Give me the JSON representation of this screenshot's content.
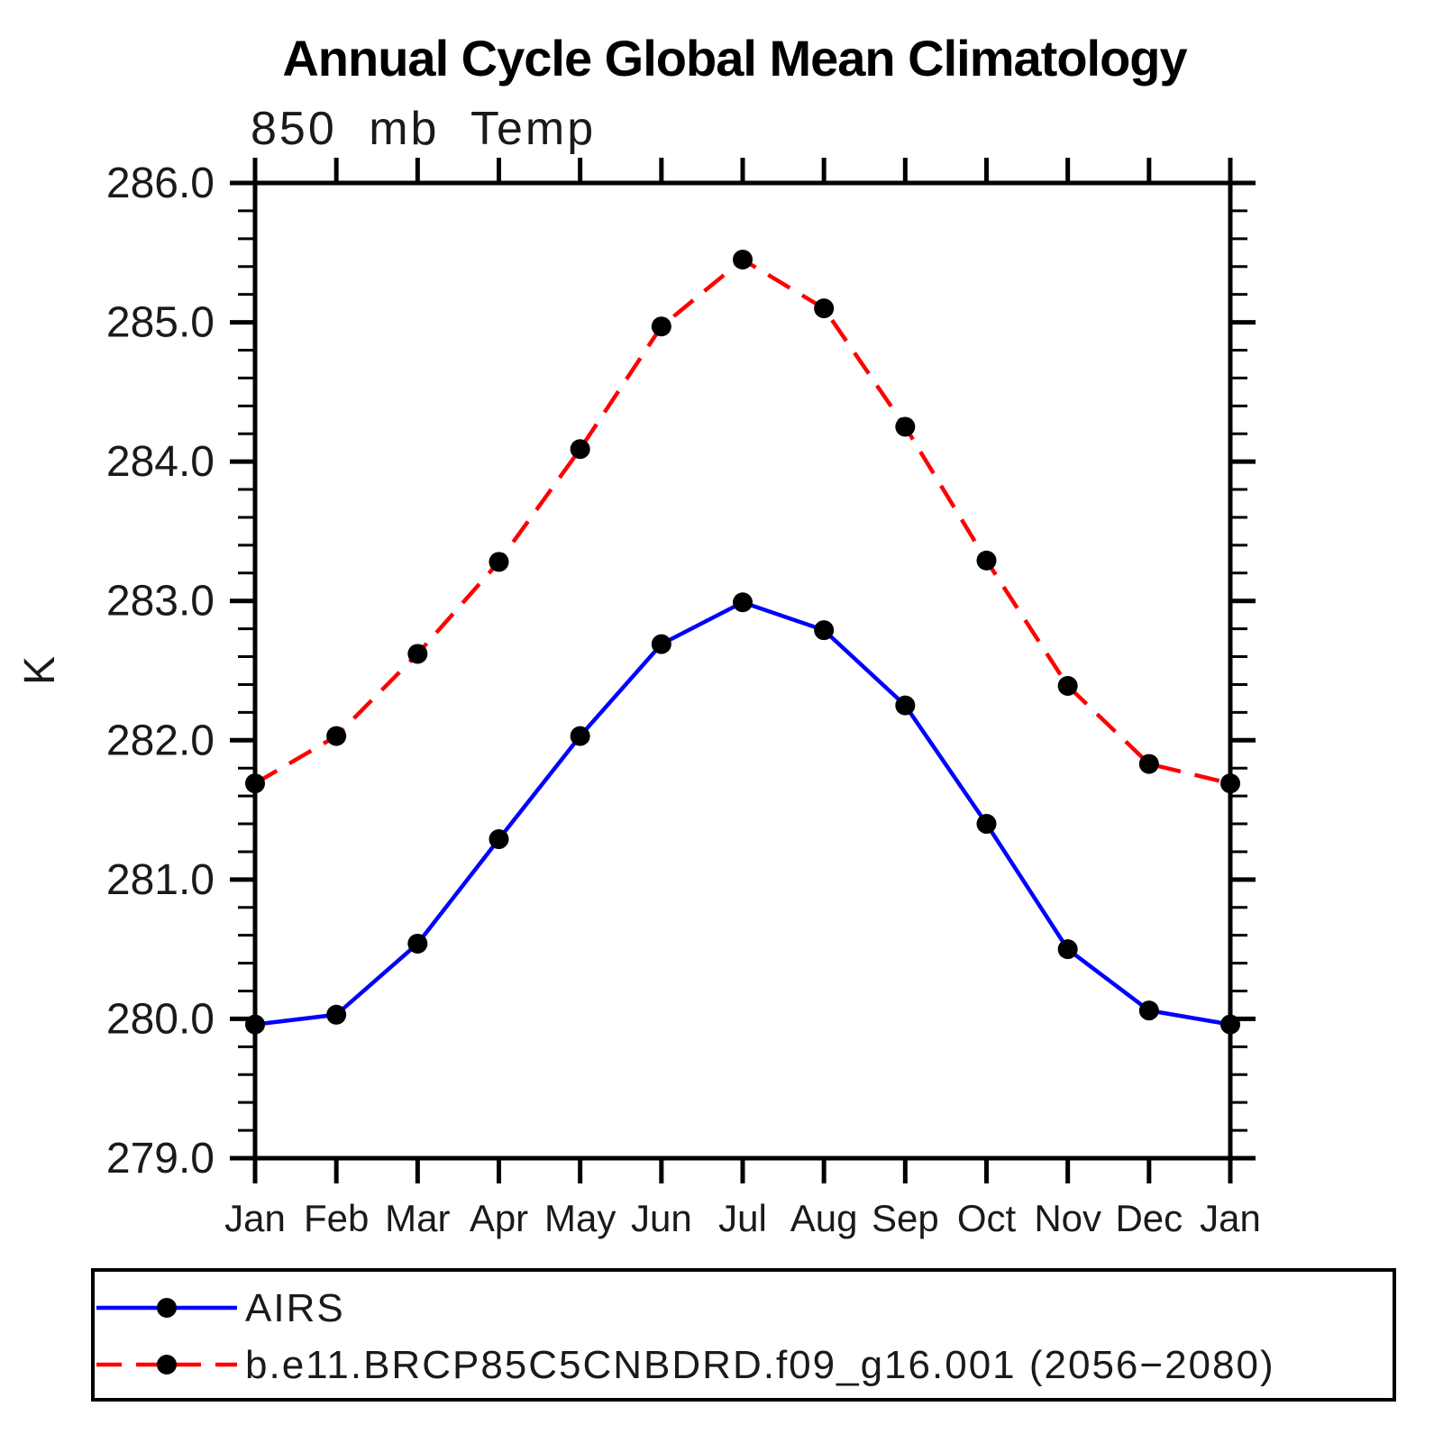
{
  "title": "Annual Cycle Global Mean Climatology",
  "subtitle": "850 mb Temp",
  "chart_data": {
    "type": "line",
    "title": "Annual Cycle Global Mean Climatology",
    "subtitle": "850 mb Temp",
    "xlabel": "",
    "ylabel": "K",
    "categories": [
      "Jan",
      "Feb",
      "Mar",
      "Apr",
      "May",
      "Jun",
      "Jul",
      "Aug",
      "Sep",
      "Oct",
      "Nov",
      "Dec",
      "Jan"
    ],
    "ylim": [
      279.0,
      286.0
    ],
    "ytick_step": 1.0,
    "yminor_step": 0.2,
    "ytick_format_decimals": 1,
    "grid": false,
    "frame": true,
    "tick_direction": "out",
    "legend_position": "bottom-left-box",
    "axis_color": "#000000",
    "marker_color": "#000000",
    "series": [
      {
        "name": "AIRS",
        "color": "#0000ff",
        "style": "solid",
        "marker": "circle",
        "values": [
          279.96,
          280.03,
          280.54,
          281.29,
          282.03,
          282.69,
          282.99,
          282.79,
          282.25,
          281.4,
          280.5,
          280.06,
          279.96
        ]
      },
      {
        "name": "b.e11.BRCP85C5CNBDRD.f09_g16.001 (2056−2080)",
        "color": "#ff0000",
        "style": "dashed",
        "marker": "circle",
        "values": [
          281.69,
          282.03,
          282.62,
          283.28,
          284.09,
          284.97,
          285.45,
          285.1,
          284.25,
          283.29,
          282.39,
          281.83,
          281.69
        ]
      }
    ]
  }
}
